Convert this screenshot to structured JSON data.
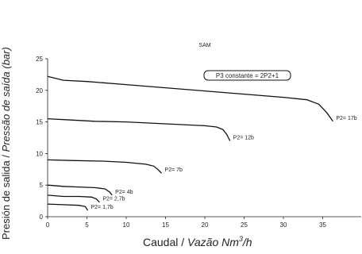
{
  "chart_data": {
    "type": "line",
    "title": "SAM",
    "ylabel_plain": "Presión de salida / ",
    "ylabel_italic": "Pressão de saída (bar)",
    "xlabel_plain": "Caudal / ",
    "xlabel_italic_pre": "Vazão  Nm",
    "xlabel_sup": "3",
    "xlabel_italic_post": "/h",
    "annotation": "P3 constante = 2P2+1",
    "xlim": [
      0,
      40
    ],
    "ylim": [
      0,
      25
    ],
    "xticks": [
      "0",
      "5",
      "10",
      "15",
      "20",
      "25",
      "30",
      "35"
    ],
    "yticks": [
      "0",
      "5",
      "10",
      "15",
      "20",
      "25"
    ],
    "grid": false,
    "series": [
      {
        "name": "P2= 17b",
        "x": [
          0,
          2,
          5,
          10,
          15,
          20,
          25,
          30,
          33,
          34.5,
          35.5,
          36.3
        ],
        "y": [
          22.2,
          21.6,
          21.4,
          20.9,
          20.4,
          19.9,
          19.4,
          18.9,
          18.5,
          17.8,
          16.5,
          15.1
        ]
      },
      {
        "name": "P2= 12b",
        "x": [
          0,
          3,
          6,
          10,
          15,
          20,
          21.5,
          22.3,
          22.8,
          23.2
        ],
        "y": [
          15.5,
          15.3,
          15.1,
          15.0,
          14.7,
          14.4,
          14.2,
          13.8,
          13.0,
          12.0
        ]
      },
      {
        "name": "P2= 7b",
        "x": [
          0,
          3,
          7,
          10,
          12.5,
          13.5,
          14.0,
          14.5
        ],
        "y": [
          9.0,
          8.9,
          8.8,
          8.6,
          8.3,
          8.0,
          7.5,
          6.9
        ]
      },
      {
        "name": "P2= 4b",
        "x": [
          0,
          2,
          4,
          6,
          7.3,
          7.9,
          8.2
        ],
        "y": [
          5.0,
          4.8,
          4.7,
          4.6,
          4.4,
          3.9,
          3.4
        ]
      },
      {
        "name": "P2= 2,7b",
        "x": [
          0,
          2,
          4,
          5.6,
          6.2,
          6.6
        ],
        "y": [
          3.4,
          3.2,
          3.2,
          3.1,
          2.8,
          2.3
        ]
      },
      {
        "name": "P2= 1,7b",
        "x": [
          0,
          2,
          4,
          4.8,
          5.1
        ],
        "y": [
          2.0,
          1.9,
          1.8,
          1.6,
          1.0
        ]
      }
    ]
  }
}
